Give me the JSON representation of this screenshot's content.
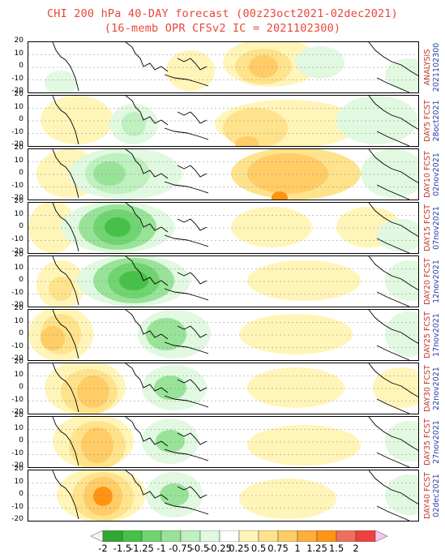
{
  "title_line1": "CHI 200 hPa 40-DAY forecast (00z23oct2021-02dec2021)",
  "title_line2": "(16-memb OPR CFSv2 IC = 2021102300)",
  "y_ticks": [
    "20",
    "10",
    "0",
    "-10",
    "-20"
  ],
  "panels": [
    {
      "label": "ANALYSIS",
      "date": "2021102300"
    },
    {
      "label": "DAY5 FCST",
      "date": "28oct2021"
    },
    {
      "label": "DAY10 FCST",
      "date": "02nov2021"
    },
    {
      "label": "DAY15 FCST",
      "date": "07nov2021"
    },
    {
      "label": "DAY20 FCST",
      "date": "12nov2021"
    },
    {
      "label": "DAY25 FCST",
      "date": "17nov2021"
    },
    {
      "label": "DAY30 FCST",
      "date": "22nov2021"
    },
    {
      "label": "DAY35 FCST",
      "date": "27nov2021"
    },
    {
      "label": "DAY40 FCST",
      "date": "02dec2021"
    }
  ],
  "colorbar": {
    "labels": [
      "-2",
      "-1.5",
      "-1.25",
      "-1",
      "-0.75",
      "-0.5",
      "-0.25",
      "0.25",
      "0.5",
      "0.75",
      "1",
      "1.25",
      "1.5",
      "2"
    ],
    "colors": [
      "#f5f5f5",
      "#2ea82e",
      "#46c046",
      "#70d470",
      "#98e398",
      "#bff0bf",
      "#e1f8e1",
      "#ffffff",
      "#fff5b8",
      "#ffe38c",
      "#ffcc66",
      "#ffad3b",
      "#ff9412",
      "#ef6f5e",
      "#f04040",
      "#ffc4f0"
    ]
  },
  "colors": {
    "title": "#e8473a",
    "label": "#c0392b",
    "date": "#1f3fa6"
  }
}
